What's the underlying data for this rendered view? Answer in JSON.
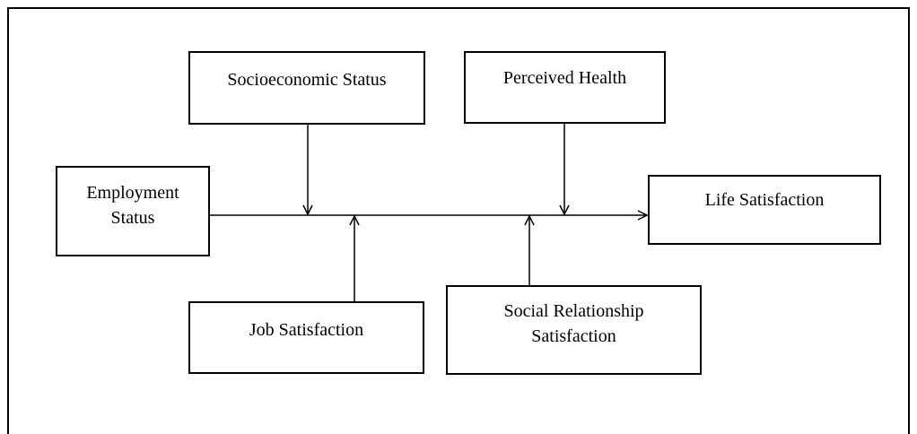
{
  "nodes": [
    {
      "label": "Employment Status"
    },
    {
      "label": "Socioeconomic Status"
    },
    {
      "label": "Perceived Health"
    },
    {
      "label": "Life Satisfaction"
    },
    {
      "label": "Job Satisfaction"
    },
    {
      "label": "Social Relationship Satisfaction"
    }
  ]
}
